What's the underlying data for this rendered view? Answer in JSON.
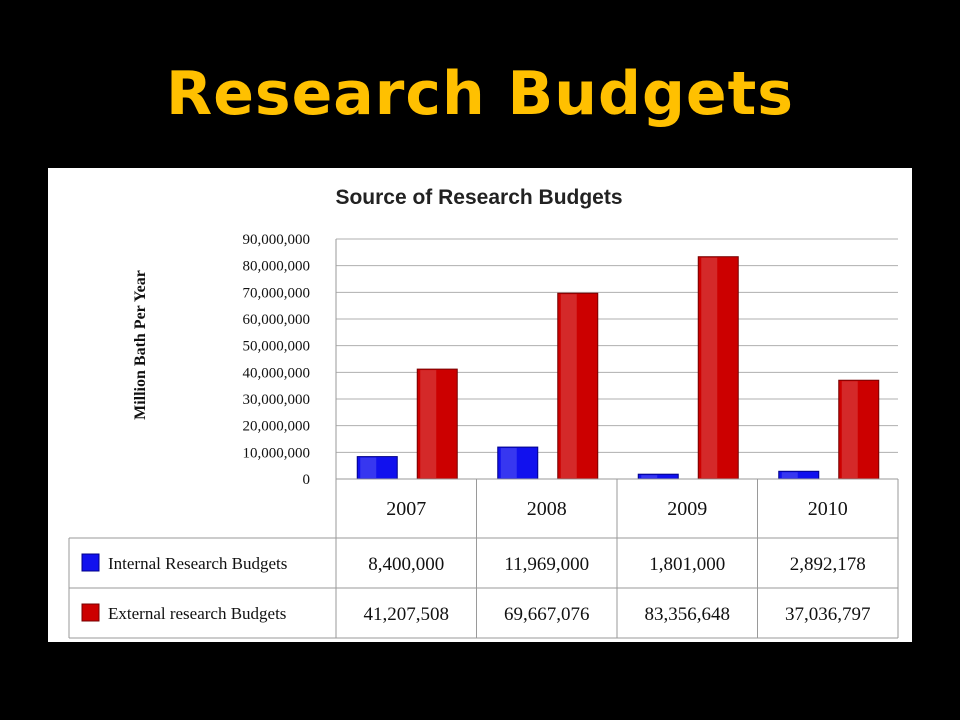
{
  "slide": {
    "title": "Research Budgets"
  },
  "colors": {
    "background": "#000000",
    "title": "#FFC000",
    "internal": "#1111EE",
    "external": "#CC0000"
  },
  "chart_data": {
    "type": "bar",
    "title": "Source of Research Budgets",
    "ylabel": "Million Bath Per Year",
    "xlabel": "",
    "categories": [
      "2007",
      "2008",
      "2009",
      "2010"
    ],
    "ylim": [
      0,
      90000000
    ],
    "yticks": [
      0,
      10000000,
      20000000,
      30000000,
      40000000,
      50000000,
      60000000,
      70000000,
      80000000,
      90000000
    ],
    "ytick_labels": [
      "0",
      "10,000,000",
      "20,000,000",
      "30,000,000",
      "40,000,000",
      "50,000,000",
      "60,000,000",
      "70,000,000",
      "80,000,000",
      "90,000,000"
    ],
    "grid": true,
    "legend": "data-table",
    "series": [
      {
        "name": "Internal Research Budgets",
        "color": "#1111EE",
        "values": [
          8400000,
          11969000,
          1801000,
          2892178
        ],
        "labels": [
          "8,400,000",
          "11,969,000",
          "1,801,000",
          "2,892,178"
        ]
      },
      {
        "name": "External research Budgets",
        "color": "#CC0000",
        "values": [
          41207508,
          69667076,
          83356648,
          37036797
        ],
        "labels": [
          "41,207,508",
          "69,667,076",
          "83,356,648",
          "37,036,797"
        ]
      }
    ]
  }
}
